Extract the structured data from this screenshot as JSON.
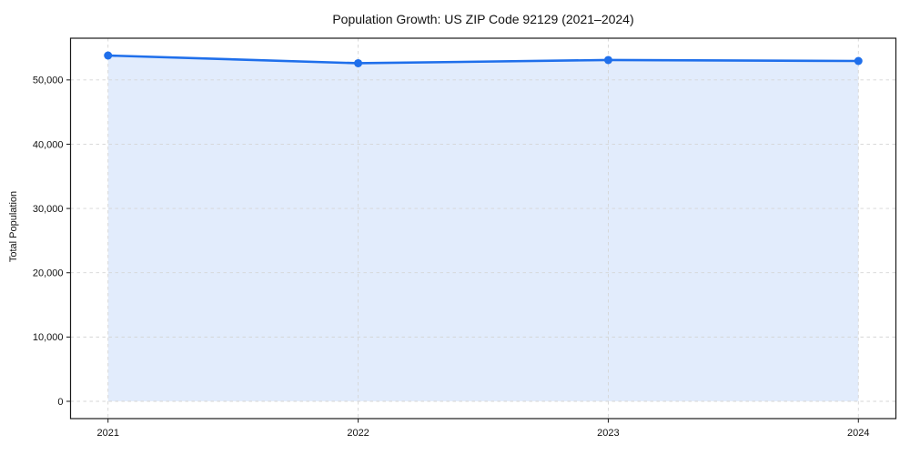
{
  "chart_data": {
    "type": "line",
    "title": "Population Growth: US ZIP Code 92129 (2021–2024)",
    "xlabel": "",
    "ylabel": "Total Population",
    "categories": [
      "2021",
      "2022",
      "2023",
      "2024"
    ],
    "x": [
      2021,
      2022,
      2023,
      2024
    ],
    "series": [
      {
        "name": "Total Population",
        "values": [
          53800,
          52600,
          53100,
          52950
        ],
        "marker": "circle",
        "area_fill": true
      }
    ],
    "xlim": [
      2020.85,
      2024.15
    ],
    "ylim": [
      -2690,
      56490
    ],
    "yticks": [
      0,
      10000,
      20000,
      30000,
      40000,
      50000
    ],
    "ytick_labels": [
      "0",
      "10,000",
      "20,000",
      "30,000",
      "40,000",
      "50,000"
    ],
    "grid": true,
    "grid_style": "dashed",
    "legend": false,
    "colors": {
      "line": "#1f6feb",
      "marker": "#1f6feb",
      "area": "rgba(31,111,235,0.13)",
      "grid": "#d5d5d5",
      "axis": "#1a1a1a",
      "text": "#111111",
      "background": "#ffffff"
    }
  }
}
